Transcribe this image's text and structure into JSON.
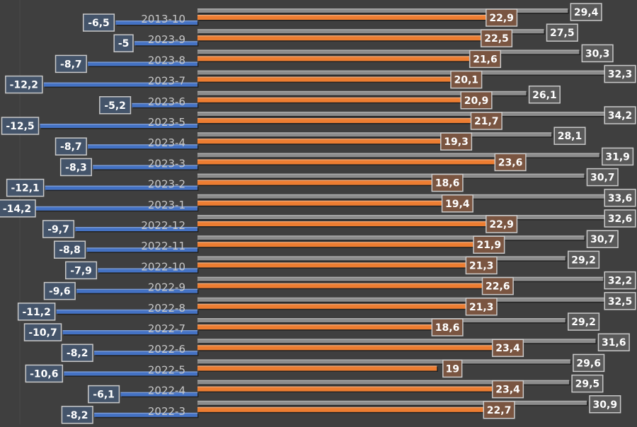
{
  "chart_data": {
    "type": "bar",
    "orientation": "horizontal",
    "grid": false,
    "legend": "none",
    "colors": {
      "background": "#3f3f3f",
      "negative": "#4472c4",
      "orange": "#ed7d31",
      "gray": "#8c8c8c"
    },
    "categories": [
      "2013-10",
      "2023-9",
      "2023-8",
      "2023-7",
      "2023-6",
      "2023-5",
      "2023-4",
      "2023-3",
      "2023-2",
      "2023-1",
      "2022-12",
      "2022-11",
      "2022-10",
      "2022-9",
      "2022-8",
      "2022-7",
      "2022-6",
      "2022-5",
      "2022-4",
      "2022-3"
    ],
    "series": [
      {
        "values": [
          -6.5,
          -5,
          -8.7,
          -12.2,
          -5.2,
          -12.5,
          -8.7,
          -8.3,
          -12.1,
          -14.2,
          -9.7,
          -8.8,
          -7.9,
          -9.6,
          -11.2,
          -10.7,
          -8.2,
          -10.6,
          -6.1,
          -8.2
        ],
        "labels": [
          "-6,5",
          "-5",
          "-8,7",
          "-12,2",
          "-5,2",
          "-12,5",
          "-8,7",
          "-8,3",
          "-12,1",
          "-14,2",
          "-9,7",
          "-8,8",
          "-7,9",
          "-9,6",
          "-11,2",
          "-10,7",
          "-8,2",
          "-10,6",
          "-6,1",
          "-8,2"
        ]
      },
      {
        "values": [
          22.9,
          22.5,
          21.6,
          20.1,
          20.9,
          21.7,
          19.3,
          23.6,
          18.6,
          19.4,
          22.9,
          21.9,
          21.3,
          22.6,
          21.3,
          18.6,
          23.4,
          19,
          23.4,
          22.7
        ],
        "labels": [
          "22,9",
          "22,5",
          "21,6",
          "20,1",
          "20,9",
          "21,7",
          "19,3",
          "23,6",
          "18,6",
          "19,4",
          "22,9",
          "21,9",
          "21,3",
          "22,6",
          "21,3",
          "18,6",
          "23,4",
          "19",
          "23,4",
          "22,7"
        ]
      },
      {
        "values": [
          29.4,
          27.5,
          30.3,
          32.3,
          26.1,
          34.2,
          28.1,
          31.9,
          30.7,
          33.6,
          32.6,
          30.7,
          29.2,
          32.2,
          32.5,
          29.2,
          31.6,
          29.6,
          29.5,
          30.9
        ],
        "labels": [
          "29,4",
          "27,5",
          "30,3",
          "32,3",
          "26,1",
          "34,2",
          "28,1",
          "31,9",
          "30,7",
          "33,6",
          "32,6",
          "30,7",
          "29,2",
          "32,2",
          "32,5",
          "29,2",
          "31,6",
          "29,6",
          "29,5",
          "30,9"
        ]
      }
    ]
  }
}
